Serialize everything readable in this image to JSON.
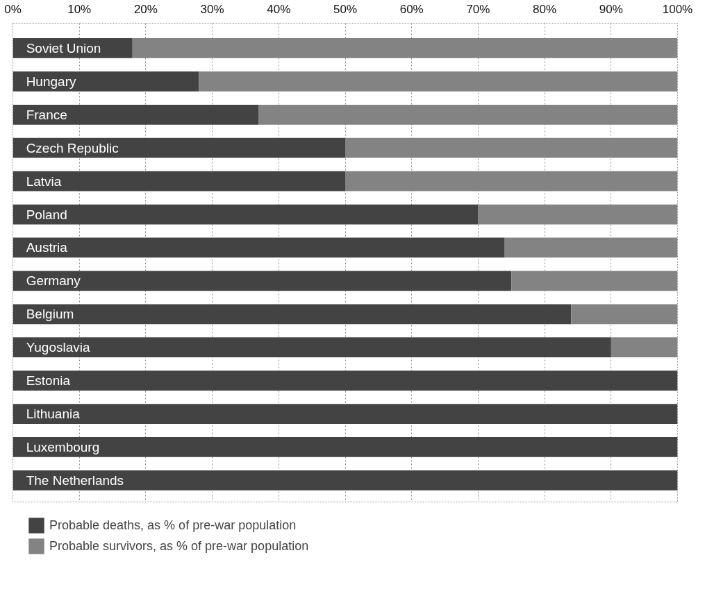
{
  "chart_data": {
    "type": "bar",
    "orientation": "horizontal",
    "stacked": true,
    "categories": [
      "Soviet Union",
      "Hungary",
      "France",
      "Czech Republic",
      "Latvia",
      "Poland",
      "Austria",
      "Germany",
      "Belgium",
      "Yugoslavia",
      "Estonia",
      "Lithuania",
      "Luxembourg",
      "The Netherlands"
    ],
    "series": [
      {
        "name": "Probable deaths, as % of pre-war population",
        "color": "#434343",
        "values": [
          18,
          28,
          37,
          50,
          50,
          70,
          74,
          75,
          84,
          90,
          100,
          100,
          100,
          100
        ]
      },
      {
        "name": "Probable survivors, as % of pre-war population",
        "color": "#838383",
        "values": [
          82,
          72,
          63,
          50,
          50,
          30,
          26,
          25,
          16,
          10,
          0,
          0,
          0,
          0
        ]
      }
    ],
    "xlim": [
      0,
      100
    ],
    "xticks": [
      {
        "value": 0,
        "label": "0%"
      },
      {
        "value": 10,
        "label": "10%"
      },
      {
        "value": 20,
        "label": "20%"
      },
      {
        "value": 30,
        "label": "30%"
      },
      {
        "value": 40,
        "label": "40%"
      },
      {
        "value": 50,
        "label": "50%"
      },
      {
        "value": 60,
        "label": "60%"
      },
      {
        "value": 70,
        "label": "70%"
      },
      {
        "value": 80,
        "label": "80%"
      },
      {
        "value": 90,
        "label": "90%"
      },
      {
        "value": 100,
        "label": "100%"
      }
    ],
    "grid": "x",
    "legend": "bottom left"
  }
}
